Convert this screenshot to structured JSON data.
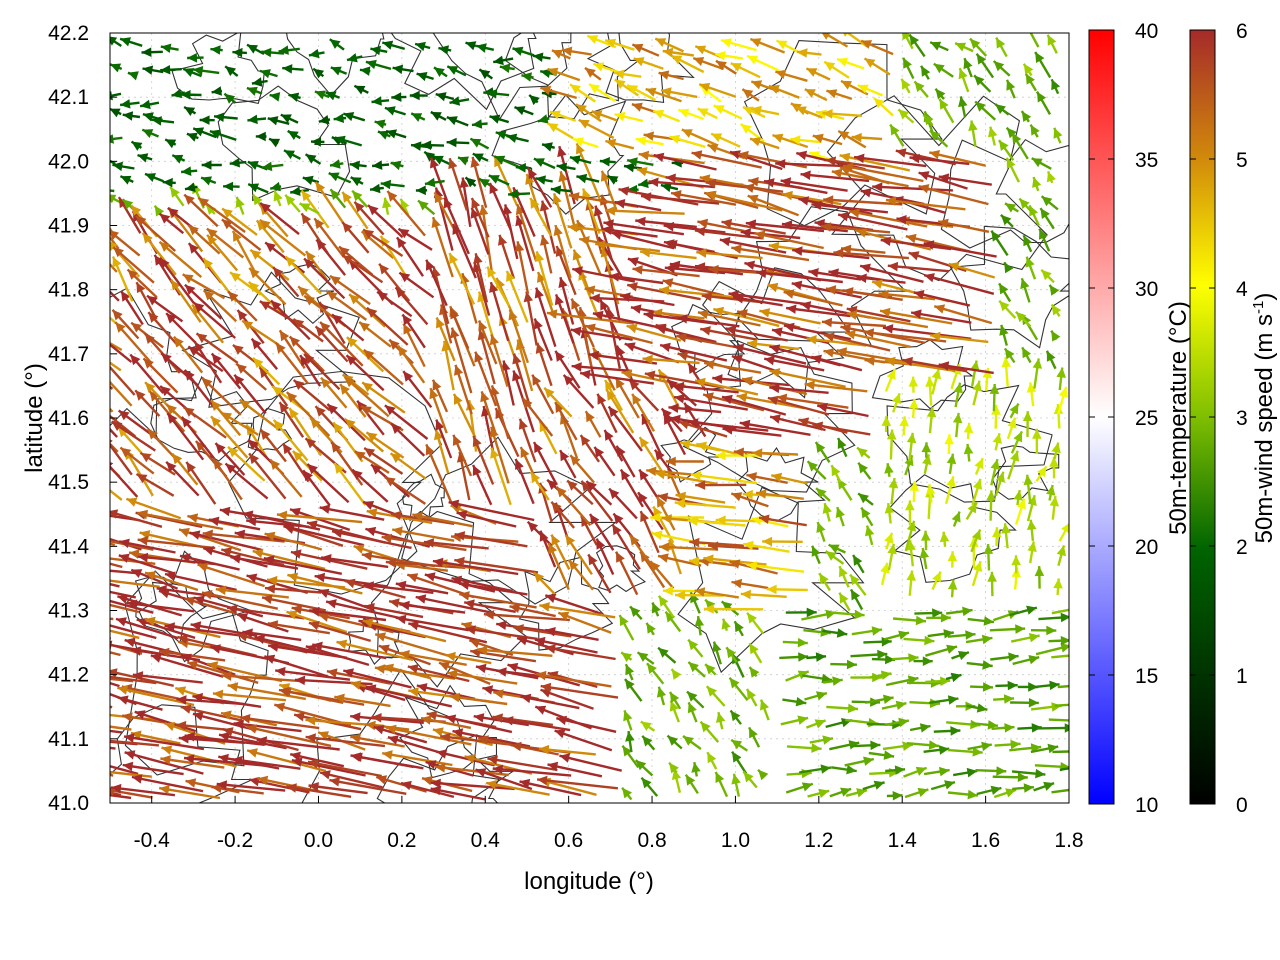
{
  "chart_data": {
    "type": "vector-field",
    "title": "",
    "xlabel": "longitude (°)",
    "ylabel": "latitude (°)",
    "xlim": [
      -0.5,
      1.8
    ],
    "ylim": [
      41.0,
      42.2
    ],
    "x_ticks": [
      "-0.4",
      "-0.2",
      "0.0",
      "0.2",
      "0.4",
      "0.6",
      "0.8",
      "1.0",
      "1.2",
      "1.4",
      "1.6",
      "1.8"
    ],
    "x_tick_values": [
      -0.4,
      -0.2,
      0.0,
      0.2,
      0.4,
      0.6,
      0.8,
      1.0,
      1.2,
      1.4,
      1.6,
      1.8
    ],
    "y_ticks": [
      "41.0",
      "41.1",
      "41.2",
      "41.3",
      "41.4",
      "41.5",
      "41.6",
      "41.7",
      "41.8",
      "41.9",
      "42.0",
      "42.1",
      "42.2"
    ],
    "y_tick_values": [
      41.0,
      41.1,
      41.2,
      41.3,
      41.4,
      41.5,
      41.6,
      41.7,
      41.8,
      41.9,
      42.0,
      42.1,
      42.2
    ],
    "grid": true,
    "temperature_colorbar": {
      "label": "50m-temperature (°C)",
      "range": [
        10,
        40
      ],
      "ticks": [
        "10",
        "15",
        "20",
        "25",
        "30",
        "35",
        "40"
      ],
      "tick_values": [
        10,
        15,
        20,
        25,
        30,
        35,
        40
      ],
      "colors": [
        "#0000ff",
        "#ffffff",
        "#ff0000"
      ]
    },
    "wind_colorbar": {
      "label": "50m-wind speed (m s",
      "label_sup": "-1",
      "label_end": ")",
      "range": [
        0,
        6
      ],
      "ticks": [
        "0",
        "1",
        "2",
        "3",
        "4",
        "5",
        "6"
      ],
      "tick_values": [
        0,
        1,
        2,
        3,
        4,
        5,
        6
      ],
      "colors": [
        "#000000",
        "#006400",
        "#7fbf00",
        "#ffff00",
        "#d28c0a",
        "#a52a2a"
      ]
    },
    "wind_regions": [
      {
        "lon": [
          -0.5,
          0.75
        ],
        "lat": [
          41.0,
          41.45
        ],
        "u": -6.0,
        "v": 1.2,
        "speed": 6.2
      },
      {
        "lon": [
          -0.5,
          0.3
        ],
        "lat": [
          41.45,
          41.9
        ],
        "u": -3.0,
        "v": 3.0,
        "speed": 5.8
      },
      {
        "lon": [
          0.3,
          0.75
        ],
        "lat": [
          41.45,
          41.95
        ],
        "u": -1.5,
        "v": 4.5,
        "speed": 5.8
      },
      {
        "lon": [
          0.75,
          1.65
        ],
        "lat": [
          41.55,
          42.0
        ],
        "u": -6.0,
        "v": 1.0,
        "speed": 6.1
      },
      {
        "lon": [
          0.55,
          0.95
        ],
        "lat": [
          41.3,
          41.65
        ],
        "u": -2.0,
        "v": 3.0,
        "speed": 5.9
      },
      {
        "lon": [
          0.9,
          1.2
        ],
        "lat": [
          41.3,
          41.55
        ],
        "u": -4.5,
        "v": 0.5,
        "speed": 5.2
      },
      {
        "lon": [
          1.1,
          1.8
        ],
        "lat": [
          41.0,
          41.3
        ],
        "u": 2.5,
        "v": 0.2,
        "speed": 2.8
      },
      {
        "lon": [
          1.35,
          1.8
        ],
        "lat": [
          41.3,
          41.65
        ],
        "u": 0.3,
        "v": 2.0,
        "speed": 3.6
      },
      {
        "lon": [
          -0.5,
          0.9
        ],
        "lat": [
          41.95,
          42.2
        ],
        "u": -1.5,
        "v": 0.3,
        "speed": 2.0
      },
      {
        "lon": [
          0.6,
          1.4
        ],
        "lat": [
          42.0,
          42.2
        ],
        "u": -2.5,
        "v": 1.0,
        "speed": 5.0
      }
    ]
  }
}
